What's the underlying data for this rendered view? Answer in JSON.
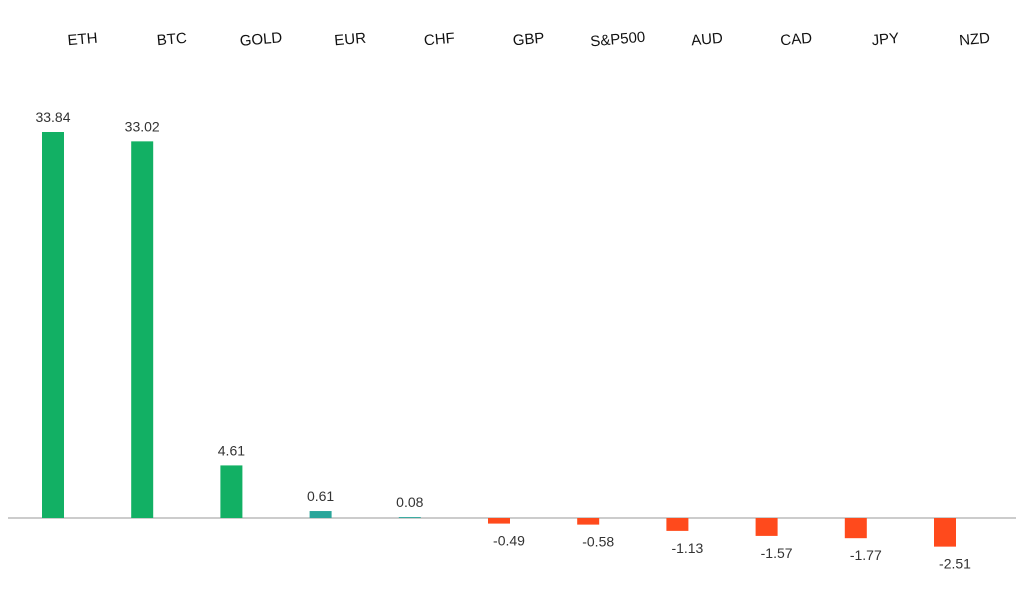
{
  "chart_data": {
    "type": "bar",
    "categories": [
      "ETH",
      "BTC",
      "GOLD",
      "EUR",
      "CHF",
      "GBP",
      "S&P500",
      "AUD",
      "CAD",
      "JPY",
      "NZD"
    ],
    "values": [
      33.84,
      33.02,
      4.61,
      0.61,
      0.08,
      -0.49,
      -0.58,
      -1.13,
      -1.57,
      -1.77,
      -2.51
    ],
    "value_labels": [
      "33.84",
      "33.02",
      "4.61",
      "0.61",
      "0.08",
      "-0.49",
      "-0.58",
      "-1.13",
      "-1.57",
      "-1.77",
      "-2.51"
    ],
    "title": "",
    "xlabel": "",
    "ylabel": "",
    "ylim": [
      -2.51,
      33.84
    ],
    "grid": false,
    "legend": "none",
    "colors": {
      "positive_large": "#12b064",
      "positive_small": "#2aa59a",
      "negative": "#ff4a1c",
      "axis": "#9a9a9a"
    }
  }
}
